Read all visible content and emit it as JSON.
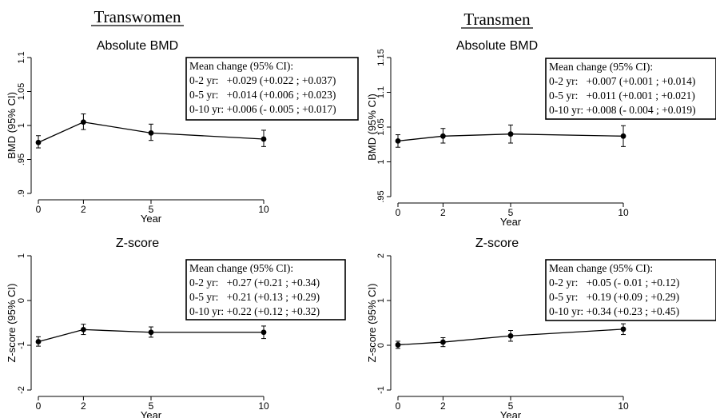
{
  "groups": [
    {
      "title": "Transwomen"
    },
    {
      "title": "Transmen"
    }
  ],
  "chart_data": [
    {
      "type": "line",
      "panel": "top-left",
      "title": "Absolute BMD",
      "xlabel": "Year",
      "ylabel": "BMD (95% CI)",
      "x": [
        0,
        2,
        5,
        10
      ],
      "xticks": [
        "0",
        "2",
        "5",
        "10"
      ],
      "xlim": [
        0,
        10
      ],
      "ylim": [
        0.9,
        1.1
      ],
      "yticks": [
        0.9,
        0.95,
        1,
        1.05,
        1.1
      ],
      "ytick_labels": [
        ".9",
        ".95",
        "1",
        "1.05",
        "1.1"
      ],
      "series": [
        {
          "values": [
            0.975,
            1.005,
            0.989,
            0.98
          ],
          "ci_lower": [
            0.967,
            0.994,
            0.978,
            0.969
          ],
          "ci_upper": [
            0.985,
            1.017,
            1.002,
            0.993
          ]
        }
      ],
      "annotation": [
        "Mean change (95% CI):",
        "0-2 yr:   +0.029 (+0.022 ; +0.037)",
        "0-5 yr:   +0.014 (+0.006 ; +0.023)",
        "0-10 yr: +0.006 (- 0.005 ; +0.017)"
      ],
      "annotation_position": "top-right",
      "grid": false
    },
    {
      "type": "line",
      "panel": "top-right",
      "title": "Absolute BMD",
      "xlabel": "Year",
      "ylabel": "BMD (95% CI)",
      "x": [
        0,
        2,
        5,
        10
      ],
      "xticks": [
        "0",
        "2",
        "5",
        "10"
      ],
      "xlim": [
        0,
        10
      ],
      "ylim": [
        0.95,
        1.15
      ],
      "yticks": [
        0.95,
        1,
        1.05,
        1.1,
        1.15
      ],
      "ytick_labels": [
        ".95",
        "1",
        "1.05",
        "1.1",
        "1.15"
      ],
      "series": [
        {
          "values": [
            1.03,
            1.037,
            1.04,
            1.037
          ],
          "ci_lower": [
            1.021,
            1.027,
            1.027,
            1.022
          ],
          "ci_upper": [
            1.039,
            1.048,
            1.053,
            1.052
          ]
        }
      ],
      "annotation": [
        "Mean change (95% CI):",
        "0-2 yr:   +0.007 (+0.001 ; +0.014)",
        "0-5 yr:   +0.011 (+0.001 ; +0.021)",
        "0-10 yr: +0.008 (- 0.004 ; +0.019)"
      ],
      "annotation_position": "top-right",
      "grid": false
    },
    {
      "type": "line",
      "panel": "bottom-left",
      "title": "Z-score",
      "xlabel": "Year",
      "ylabel": "Z-score (95% CI)",
      "x": [
        0,
        2,
        5,
        10
      ],
      "xticks": [
        "0",
        "2",
        "5",
        "10"
      ],
      "xlim": [
        0,
        10
      ],
      "ylim": [
        -2,
        1
      ],
      "yticks": [
        -2,
        -1,
        0,
        1
      ],
      "ytick_labels": [
        "-2",
        "-1",
        "0",
        "1"
      ],
      "series": [
        {
          "values": [
            -0.92,
            -0.65,
            -0.71,
            -0.71
          ],
          "ci_lower": [
            -1.02,
            -0.76,
            -0.82,
            -0.85
          ],
          "ci_upper": [
            -0.81,
            -0.53,
            -0.59,
            -0.57
          ]
        }
      ],
      "annotation": [
        "Mean change (95% CI):",
        "0-2 yr:   +0.27 (+0.21 ; +0.34)",
        "0-5 yr:   +0.21 (+0.13 ; +0.29)",
        "0-10 yr: +0.22 (+0.12 ; +0.32)"
      ],
      "annotation_position": "top-right",
      "grid": false
    },
    {
      "type": "line",
      "panel": "bottom-right",
      "title": "Z-score",
      "xlabel": "Year",
      "ylabel": "Z-score (95% CI)",
      "x": [
        0,
        2,
        5,
        10
      ],
      "xticks": [
        "0",
        "2",
        "5",
        "10"
      ],
      "xlim": [
        0,
        10
      ],
      "ylim": [
        -1,
        2
      ],
      "yticks": [
        -1,
        0,
        1,
        2
      ],
      "ytick_labels": [
        "-1",
        "0",
        "1",
        "2"
      ],
      "series": [
        {
          "values": [
            0.01,
            0.07,
            0.21,
            0.36
          ],
          "ci_lower": [
            -0.07,
            -0.03,
            0.09,
            0.24
          ],
          "ci_upper": [
            0.09,
            0.17,
            0.33,
            0.48
          ]
        }
      ],
      "annotation": [
        "Mean change (95% CI):",
        "0-2 yr:   +0.05 (- 0.01 ; +0.12)",
        "0-5 yr:   +0.19 (+0.09 ; +0.29)",
        "0-10 yr: +0.34 (+0.23 ; +0.45)"
      ],
      "annotation_position": "top-right",
      "grid": false
    }
  ]
}
